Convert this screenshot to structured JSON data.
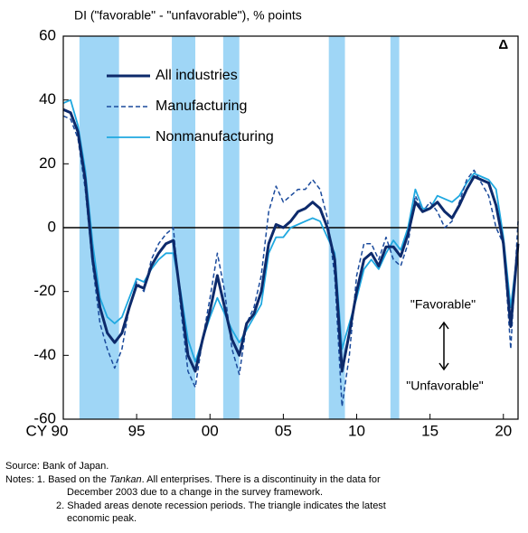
{
  "chart_data": {
    "type": "line",
    "title": "DI (\"favorable\" - \"unfavorable\"), % points",
    "x": [
      1990,
      1990.5,
      1991,
      1991.5,
      1992,
      1992.5,
      1993,
      1993.5,
      1994,
      1994.5,
      1995,
      1995.5,
      1996,
      1996.5,
      1997,
      1997.5,
      1998,
      1998.5,
      1999,
      1999.5,
      2000,
      2000.5,
      2001,
      2001.5,
      2002,
      2002.5,
      2003,
      2003.5,
      2004,
      2004.5,
      2005,
      2005.5,
      2006,
      2006.5,
      2007,
      2007.5,
      2008,
      2008.5,
      2009,
      2009.5,
      2010,
      2010.5,
      2011,
      2011.5,
      2012,
      2012.5,
      2013,
      2013.5,
      2014,
      2014.5,
      2015,
      2015.5,
      2016,
      2016.5,
      2017,
      2017.5,
      2018,
      2018.5,
      2019,
      2019.5,
      2020,
      2020.5,
      2021
    ],
    "series": [
      {
        "name": "All industries",
        "color": "#0d2a6b",
        "style": "solid",
        "width": 3,
        "values": [
          37,
          36,
          30,
          15,
          -10,
          -25,
          -33,
          -36,
          -33,
          -25,
          -18,
          -19,
          -12,
          -8,
          -5,
          -4,
          -22,
          -40,
          -45,
          -35,
          -26,
          -15,
          -25,
          -35,
          -40,
          -30,
          -27,
          -20,
          -5,
          1,
          0,
          2,
          5,
          6,
          8,
          6,
          0,
          -10,
          -45,
          -33,
          -20,
          -10,
          -8,
          -12,
          -6,
          -6,
          -9,
          -2,
          8,
          5,
          6,
          8,
          5,
          3,
          7,
          12,
          16,
          15,
          14,
          7,
          -5,
          -31,
          -5
        ]
      },
      {
        "name": "Manufacturing",
        "color": "#1a4a9c",
        "style": "dashed",
        "width": 1.5,
        "values": [
          35,
          34,
          28,
          12,
          -12,
          -30,
          -38,
          -44,
          -38,
          -25,
          -17,
          -20,
          -10,
          -5,
          -2,
          0,
          -25,
          -45,
          -50,
          -35,
          -22,
          -8,
          -20,
          -38,
          -46,
          -30,
          -25,
          -15,
          5,
          13,
          8,
          10,
          12,
          12,
          15,
          12,
          3,
          -15,
          -56,
          -40,
          -15,
          -5,
          -5,
          -10,
          -3,
          -10,
          -12,
          -5,
          10,
          5,
          8,
          5,
          0,
          2,
          8,
          15,
          18,
          14,
          10,
          0,
          -5,
          -38,
          2
        ]
      },
      {
        "name": "Nonmanufacturing",
        "color": "#1fa8e0",
        "style": "solid",
        "width": 1.8,
        "values": [
          39,
          40,
          32,
          18,
          -5,
          -22,
          -28,
          -30,
          -28,
          -22,
          -16,
          -17,
          -13,
          -10,
          -8,
          -8,
          -20,
          -35,
          -42,
          -35,
          -28,
          -22,
          -27,
          -32,
          -36,
          -32,
          -28,
          -24,
          -8,
          -3,
          -3,
          0,
          1,
          2,
          3,
          2,
          -3,
          -8,
          -38,
          -30,
          -22,
          -13,
          -10,
          -13,
          -8,
          -4,
          -7,
          0,
          12,
          6,
          6,
          10,
          9,
          8,
          10,
          14,
          17,
          16,
          15,
          12,
          -3,
          -25,
          -6
        ]
      }
    ],
    "shaded_periods": [
      [
        1991.1,
        1993.8
      ],
      [
        1997.4,
        1999.0
      ],
      [
        2000.9,
        2002.0
      ],
      [
        2008.1,
        2009.2
      ],
      [
        2012.3,
        2012.9
      ]
    ],
    "shade_color": "#9fd6f6",
    "xlim": [
      1990,
      2021
    ],
    "xticks": [
      {
        "value": 1990,
        "label": "CY 90"
      },
      {
        "value": 1995,
        "label": "95"
      },
      {
        "value": 2000,
        "label": "00"
      },
      {
        "value": 2005,
        "label": "05"
      },
      {
        "value": 2010,
        "label": "10"
      },
      {
        "value": 2015,
        "label": "15"
      },
      {
        "value": 2020,
        "label": "20"
      }
    ],
    "ylim": [
      -60,
      60
    ],
    "yticks": [
      -60,
      -40,
      -20,
      0,
      20,
      40,
      60
    ],
    "peak_marker": "Δ",
    "annotations": [
      "\"Favorable\"",
      "\"Unfavorable\""
    ],
    "source": "Source: Bank of Japan.",
    "notes": {
      "label": "Notes: ",
      "note1_pre": "1. Based on the ",
      "note1_italic": "Tankan",
      "note1_post": ". All enterprises. There is a discontinuity in the data for",
      "note1_cont": "December 2003 due to a change in the survey framework.",
      "note2": "2. Shaded areas denote recession periods. The triangle indicates the latest",
      "note2_cont": "economic peak."
    }
  }
}
